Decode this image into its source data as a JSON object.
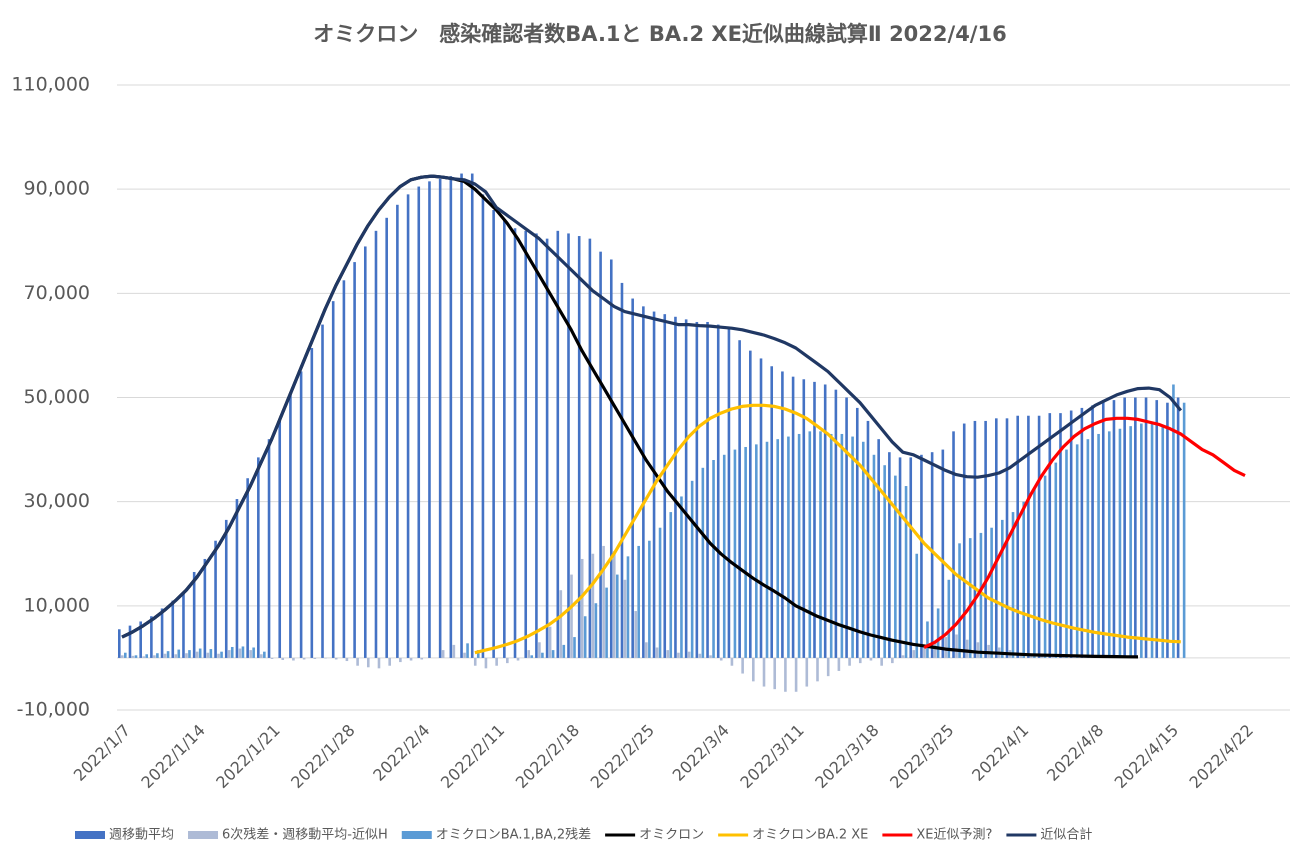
{
  "chart_data": {
    "type": "combo",
    "title": "オミクロン　感染確認者数BA.1と BA.2  XE近似曲線試算Ⅱ  2022/4/16",
    "x": [
      "2022/1/7",
      "2022/1/8",
      "2022/1/9",
      "2022/1/10",
      "2022/1/11",
      "2022/1/12",
      "2022/1/13",
      "2022/1/14",
      "2022/1/15",
      "2022/1/16",
      "2022/1/17",
      "2022/1/18",
      "2022/1/19",
      "2022/1/20",
      "2022/1/21",
      "2022/1/22",
      "2022/1/23",
      "2022/1/24",
      "2022/1/25",
      "2022/1/26",
      "2022/1/27",
      "2022/1/28",
      "2022/1/29",
      "2022/1/30",
      "2022/1/31",
      "2022/2/1",
      "2022/2/2",
      "2022/2/3",
      "2022/2/4",
      "2022/2/5",
      "2022/2/6",
      "2022/2/7",
      "2022/2/8",
      "2022/2/9",
      "2022/2/10",
      "2022/2/11",
      "2022/2/12",
      "2022/2/13",
      "2022/2/14",
      "2022/2/15",
      "2022/2/16",
      "2022/2/17",
      "2022/2/18",
      "2022/2/19",
      "2022/2/20",
      "2022/2/21",
      "2022/2/22",
      "2022/2/23",
      "2022/2/24",
      "2022/2/25",
      "2022/2/26",
      "2022/2/27",
      "2022/2/28",
      "2022/3/1",
      "2022/3/2",
      "2022/3/3",
      "2022/3/4",
      "2022/3/5",
      "2022/3/6",
      "2022/3/7",
      "2022/3/8",
      "2022/3/9",
      "2022/3/10",
      "2022/3/11",
      "2022/3/12",
      "2022/3/13",
      "2022/3/14",
      "2022/3/15",
      "2022/3/16",
      "2022/3/17",
      "2022/3/18",
      "2022/3/19",
      "2022/3/20",
      "2022/3/21",
      "2022/3/22",
      "2022/3/23",
      "2022/3/24",
      "2022/3/25",
      "2022/3/26",
      "2022/3/27",
      "2022/3/28",
      "2022/3/29",
      "2022/3/30",
      "2022/3/31",
      "2022/4/1",
      "2022/4/2",
      "2022/4/3",
      "2022/4/4",
      "2022/4/5",
      "2022/4/6",
      "2022/4/7",
      "2022/4/8",
      "2022/4/9",
      "2022/4/10",
      "2022/4/11",
      "2022/4/12",
      "2022/4/13",
      "2022/4/14",
      "2022/4/15",
      "2022/4/16",
      "2022/4/17",
      "2022/4/18",
      "2022/4/19",
      "2022/4/20",
      "2022/4/21",
      "2022/4/22"
    ],
    "xticks": [
      "2022/1/7",
      "2022/1/14",
      "2022/1/21",
      "2022/1/28",
      "2022/2/4",
      "2022/2/11",
      "2022/2/18",
      "2022/2/25",
      "2022/3/4",
      "2022/3/11",
      "2022/3/18",
      "2022/3/25",
      "2022/4/1",
      "2022/4/8",
      "2022/4/15",
      "2022/4/22"
    ],
    "ylim": [
      -10000,
      110000
    ],
    "yticks": [
      {
        "value": -10000,
        "label": "-10,000"
      },
      {
        "value": 10000,
        "label": "10,000"
      },
      {
        "value": 30000,
        "label": "30,000"
      },
      {
        "value": 50000,
        "label": "50,000"
      },
      {
        "value": 70000,
        "label": "70,000"
      },
      {
        "value": 90000,
        "label": "90,000"
      },
      {
        "value": 110000,
        "label": "110,000"
      }
    ],
    "grid": true,
    "legend": "bottom",
    "series": [
      {
        "name": "週移動平均",
        "type": "bar",
        "color": "#4472c4",
        "values": [
          5500,
          6200,
          7000,
          8000,
          9500,
          11000,
          12500,
          16500,
          19000,
          22500,
          26500,
          30500,
          34500,
          38500,
          42000,
          46000,
          50500,
          55000,
          59500,
          64000,
          68500,
          72500,
          76000,
          79000,
          82000,
          84500,
          87000,
          89000,
          90500,
          91500,
          92000,
          92500,
          93000,
          93000,
          89000,
          86000,
          84000,
          82500,
          82000,
          81500,
          80500,
          82000,
          81500,
          81000,
          80500,
          78000,
          76500,
          72000,
          69000,
          67500,
          66500,
          66000,
          65500,
          65000,
          64500,
          64500,
          64000,
          63500,
          61000,
          59000,
          57500,
          56000,
          55000,
          54000,
          53500,
          53000,
          52500,
          51500,
          50000,
          48000,
          45500,
          42000,
          39500,
          38500,
          38500,
          39000,
          39500,
          40000,
          43500,
          45000,
          45500,
          45500,
          46000,
          46000,
          46500,
          46500,
          46500,
          47000,
          47000,
          47500,
          48000,
          48500,
          49500,
          49500,
          50000,
          50000,
          50000,
          49500,
          49000,
          50000,
          null,
          null,
          null,
          null,
          null,
          null
        ]
      },
      {
        "name": "6次残差・週移動平均-近似H",
        "type": "bar",
        "color": "#aebbd6",
        "values": [
          500,
          400,
          300,
          500,
          800,
          700,
          900,
          1200,
          1000,
          800,
          1500,
          1800,
          1500,
          700,
          -200,
          -400,
          -500,
          -300,
          -200,
          -100,
          -300,
          -600,
          -1500,
          -1800,
          -2000,
          -1500,
          -800,
          -500,
          -300,
          0,
          1500,
          2500,
          1000,
          -1500,
          -2000,
          -1500,
          -1000,
          -500,
          1500,
          3000,
          6000,
          13000,
          16000,
          19000,
          20000,
          21500,
          20500,
          15000,
          9000,
          3000,
          2000,
          1500,
          1000,
          1200,
          800,
          500,
          -500,
          -1500,
          -3000,
          -4500,
          -5500,
          -6000,
          -6500,
          -6500,
          -5500,
          -4500,
          -3500,
          -2500,
          -1500,
          -1000,
          -500,
          -1500,
          -1000,
          500,
          1500,
          2000,
          3000,
          4000,
          4500,
          3500,
          3000,
          2500,
          2000,
          1500,
          1000,
          800,
          600,
          500,
          400,
          300,
          200,
          100,
          100,
          0,
          0,
          0,
          0,
          0,
          null,
          null,
          null,
          null,
          null,
          null,
          null,
          null
        ]
      },
      {
        "name": "オミクロンBA.1,BA,2残差",
        "type": "bar",
        "color": "#5b9bd5",
        "values": [
          1000,
          500,
          700,
          900,
          1300,
          1600,
          1500,
          1800,
          1700,
          1200,
          2100,
          2200,
          2000,
          1200,
          null,
          null,
          null,
          null,
          null,
          null,
          null,
          null,
          null,
          null,
          null,
          null,
          null,
          null,
          null,
          null,
          null,
          null,
          2800,
          1500,
          null,
          null,
          null,
          null,
          500,
          1000,
          1500,
          2500,
          4000,
          8000,
          10500,
          13500,
          16000,
          19500,
          21500,
          22500,
          25000,
          28000,
          31000,
          34000,
          36500,
          38000,
          39000,
          40000,
          40500,
          41000,
          41500,
          42000,
          42500,
          43000,
          43500,
          43500,
          43000,
          43000,
          42500,
          41500,
          39000,
          37000,
          35000,
          33000,
          20000,
          7000,
          9500,
          15000,
          22000,
          23000,
          24000,
          25000,
          26500,
          28000,
          30000,
          32500,
          35000,
          37500,
          40000,
          41000,
          42000,
          43000,
          43500,
          44000,
          44500,
          45000,
          45000,
          44500,
          52500,
          49000,
          null,
          null,
          null,
          null,
          null,
          null
        ]
      },
      {
        "name": "オミクロン",
        "type": "line",
        "color": "#000000",
        "values": [
          4000,
          5000,
          6200,
          7600,
          9200,
          11000,
          13000,
          15500,
          18500,
          21500,
          25000,
          29000,
          33000,
          37500,
          42000,
          47000,
          52000,
          57000,
          62000,
          67000,
          71500,
          75500,
          79500,
          83000,
          86000,
          88500,
          90500,
          91800,
          92300,
          92500,
          92300,
          92000,
          91500,
          90000,
          88000,
          86000,
          83500,
          80500,
          77000,
          73500,
          70000,
          66500,
          63000,
          59000,
          55500,
          52000,
          48500,
          45000,
          41500,
          38000,
          35000,
          32000,
          29500,
          27000,
          24500,
          22000,
          20000,
          18300,
          16800,
          15300,
          14000,
          12800,
          11500,
          10000,
          9000,
          8000,
          7200,
          6400,
          5700,
          5000,
          4400,
          3900,
          3400,
          3000,
          2600,
          2300,
          2000,
          1700,
          1500,
          1300,
          1100,
          1000,
          900,
          800,
          700,
          600,
          550,
          500,
          450,
          400,
          350,
          300,
          280,
          250,
          220,
          200,
          null,
          null,
          null,
          null,
          null,
          null,
          null,
          null,
          null,
          null
        ]
      },
      {
        "name": "オミクロンBA.2 XE",
        "type": "line",
        "color": "#ffc000",
        "values": [
          null,
          null,
          null,
          null,
          null,
          null,
          null,
          null,
          null,
          null,
          null,
          null,
          null,
          null,
          null,
          null,
          null,
          null,
          null,
          null,
          null,
          null,
          null,
          null,
          null,
          null,
          null,
          null,
          null,
          null,
          null,
          null,
          null,
          1000,
          1500,
          2000,
          2600,
          3300,
          4200,
          5300,
          6500,
          8000,
          9800,
          11800,
          14200,
          17000,
          20000,
          23500,
          27000,
          30500,
          34000,
          37000,
          40000,
          42500,
          44500,
          46000,
          47000,
          47800,
          48300,
          48500,
          48500,
          48300,
          47800,
          47000,
          46000,
          44500,
          43000,
          41000,
          39000,
          37000,
          34500,
          32000,
          29500,
          27000,
          24500,
          22000,
          20000,
          18000,
          16000,
          14500,
          13000,
          11500,
          10500,
          9500,
          8700,
          8000,
          7300,
          6700,
          6200,
          5700,
          5300,
          4900,
          4600,
          4300,
          4000,
          3800,
          3600,
          3400,
          3200,
          3100,
          null,
          null,
          null,
          null,
          null,
          null
        ]
      },
      {
        "name": "XE近似予測?",
        "type": "line",
        "color": "#ff0000",
        "values": [
          null,
          null,
          null,
          null,
          null,
          null,
          null,
          null,
          null,
          null,
          null,
          null,
          null,
          null,
          null,
          null,
          null,
          null,
          null,
          null,
          null,
          null,
          null,
          null,
          null,
          null,
          null,
          null,
          null,
          null,
          null,
          null,
          null,
          null,
          null,
          null,
          null,
          null,
          null,
          null,
          null,
          null,
          null,
          null,
          null,
          null,
          null,
          null,
          null,
          null,
          null,
          null,
          null,
          null,
          null,
          null,
          null,
          null,
          null,
          null,
          null,
          null,
          null,
          null,
          null,
          null,
          null,
          null,
          null,
          null,
          null,
          null,
          null,
          null,
          null,
          2000,
          3000,
          4500,
          6500,
          9000,
          12000,
          15500,
          19500,
          23500,
          27500,
          31500,
          35000,
          38000,
          40500,
          42500,
          44000,
          45000,
          45800,
          46000,
          46000,
          45800,
          45300,
          44800,
          44000,
          43000,
          41500,
          40000,
          39000,
          37500,
          36000,
          35000
        ]
      },
      {
        "name": "近似合計",
        "type": "line",
        "color": "#203864",
        "values": [
          4000,
          5000,
          6200,
          7600,
          9200,
          11000,
          13000,
          15500,
          18500,
          21500,
          25000,
          29000,
          33000,
          37500,
          42000,
          47000,
          52000,
          57000,
          62000,
          67000,
          71500,
          75500,
          79500,
          83000,
          86000,
          88500,
          90500,
          91800,
          92300,
          92500,
          92300,
          92000,
          91800,
          91000,
          89500,
          86500,
          85000,
          83500,
          82000,
          80500,
          78500,
          76500,
          74500,
          72500,
          70500,
          69000,
          67500,
          66500,
          66000,
          65500,
          65000,
          64500,
          64000,
          64000,
          63800,
          63700,
          63500,
          63300,
          63000,
          62500,
          62000,
          61300,
          60500,
          59500,
          58000,
          56500,
          55000,
          53000,
          51000,
          49000,
          46500,
          44000,
          41500,
          39500,
          39000,
          38000,
          37000,
          36000,
          35200,
          34800,
          34700,
          35000,
          35500,
          36500,
          38000,
          39500,
          41000,
          42500,
          44000,
          45500,
          47000,
          48500,
          49500,
          50500,
          51200,
          51700,
          51800,
          51500,
          50000,
          47500,
          null,
          null,
          null,
          null,
          null,
          null
        ]
      }
    ]
  }
}
